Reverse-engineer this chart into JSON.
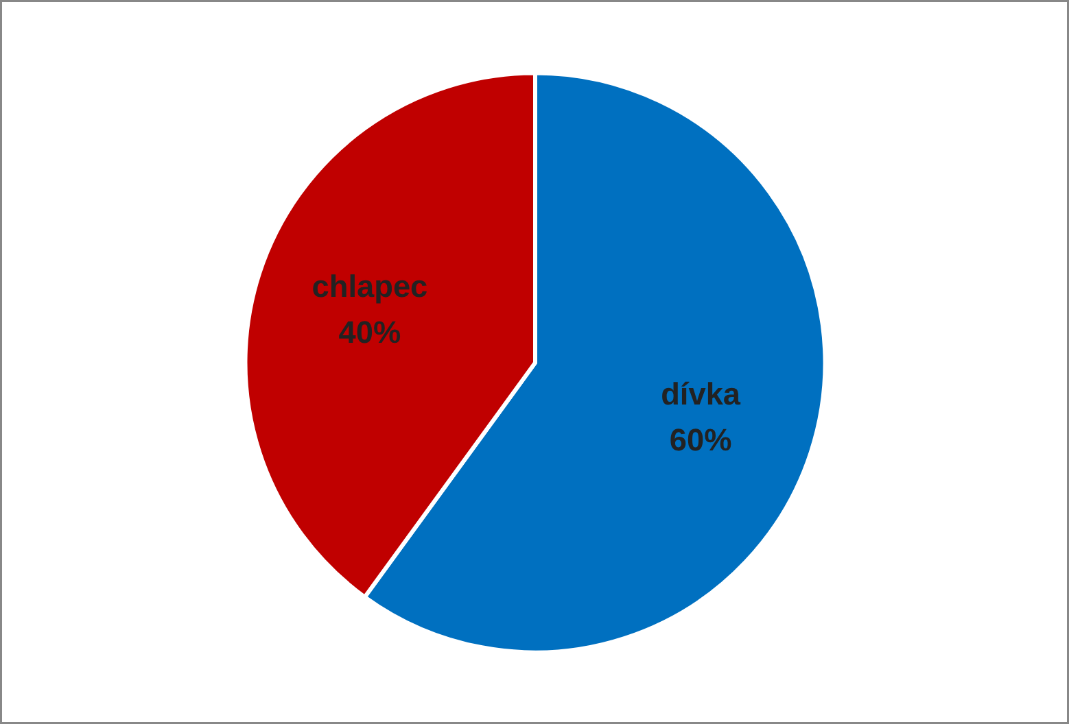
{
  "chart_data": {
    "type": "pie",
    "categories": [
      "dívka",
      "chlapec"
    ],
    "values": [
      60,
      40
    ],
    "colors": [
      "#0070c0",
      "#c00000"
    ],
    "value_labels": [
      "60%",
      "40%"
    ],
    "legend": false
  }
}
